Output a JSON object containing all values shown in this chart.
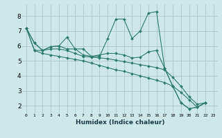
{
  "xlabel": "Humidex (Indice chaleur)",
  "background_color": "#cce8e8",
  "grid_color": "#b0cccc",
  "line_color": "#2e7b6e",
  "xlim": [
    -0.5,
    23.5
  ],
  "ylim": [
    1.5,
    8.8
  ],
  "yticks": [
    2,
    3,
    4,
    5,
    6,
    7,
    8
  ],
  "xticks": [
    0,
    1,
    2,
    3,
    4,
    5,
    6,
    7,
    8,
    9,
    10,
    11,
    12,
    13,
    14,
    15,
    16,
    17,
    18,
    19,
    20,
    21,
    22,
    23
  ],
  "series": [
    [
      7.2,
      6.2,
      5.7,
      5.95,
      6.0,
      6.6,
      5.8,
      5.8,
      5.3,
      5.3,
      6.5,
      7.8,
      7.8,
      6.5,
      7.0,
      8.2,
      8.3,
      4.5,
      3.3,
      2.2,
      1.8,
      1.9,
      2.2
    ],
    [
      7.2,
      6.2,
      5.7,
      5.95,
      6.0,
      5.8,
      5.8,
      5.4,
      5.3,
      5.4,
      5.5,
      5.5,
      5.4,
      5.2,
      5.25,
      5.6,
      5.7,
      4.5,
      3.3,
      2.2,
      1.8,
      1.9,
      2.2
    ],
    [
      7.2,
      5.7,
      5.7,
      5.8,
      5.8,
      5.7,
      5.5,
      5.3,
      5.25,
      5.2,
      5.15,
      5.05,
      4.95,
      4.85,
      4.75,
      4.65,
      4.55,
      4.4,
      3.9,
      3.3,
      2.6,
      2.1,
      2.2
    ],
    [
      7.2,
      5.7,
      5.5,
      5.4,
      5.3,
      5.2,
      5.1,
      5.0,
      4.85,
      4.7,
      4.55,
      4.4,
      4.3,
      4.15,
      4.0,
      3.85,
      3.7,
      3.55,
      3.3,
      2.9,
      2.4,
      1.9,
      2.2
    ]
  ]
}
